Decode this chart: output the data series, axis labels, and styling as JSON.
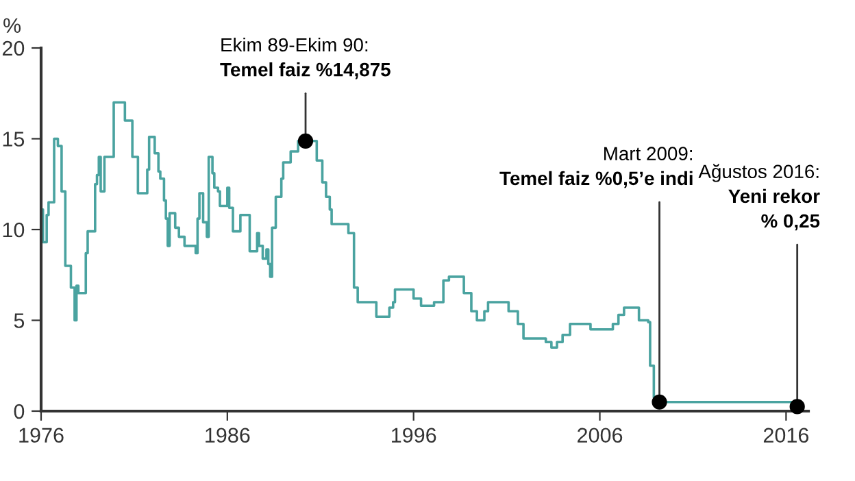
{
  "chart_data": {
    "type": "step",
    "ylabel": "%",
    "xlim": [
      1976,
      2017.2
    ],
    "xticks": [
      1976,
      1986,
      1996,
      2006,
      2016
    ],
    "ylim": [
      0,
      20
    ],
    "yticks": [
      0,
      5,
      10,
      15,
      20
    ],
    "grid": false,
    "series": [
      {
        "color": "#4aa3a0",
        "x": [
          1976.0,
          1976.1,
          1976.2,
          1976.3,
          1976.4,
          1976.6,
          1976.7,
          1976.9,
          1977.1,
          1977.3,
          1977.5,
          1977.6,
          1977.8,
          1977.9,
          1978.0,
          1978.2,
          1978.4,
          1978.5,
          1978.8,
          1978.9,
          1979.0,
          1979.1,
          1979.2,
          1979.4,
          1979.8,
          1979.9,
          1980.4,
          1980.5,
          1980.8,
          1980.9,
          1981.1,
          1981.2,
          1981.6,
          1981.7,
          1981.8,
          1982.1,
          1982.3,
          1982.4,
          1982.6,
          1982.7,
          1982.8,
          1982.9,
          1983.1,
          1983.2,
          1983.4,
          1983.6,
          1983.7,
          1984.2,
          1984.3,
          1984.4,
          1984.5,
          1984.7,
          1984.8,
          1984.9,
          1985.0,
          1985.2,
          1985.3,
          1985.5,
          1985.6,
          1985.9,
          1986.0,
          1986.1,
          1986.3,
          1986.6,
          1986.7,
          1987.1,
          1987.2,
          1987.5,
          1987.6,
          1987.7,
          1987.9,
          1988.1,
          1988.2,
          1988.3,
          1988.4,
          1988.6,
          1988.8,
          1988.9,
          1989.0,
          1989.4,
          1989.8,
          1990.6,
          1990.8,
          1991.1,
          1991.3,
          1991.5,
          1991.6,
          1992.2,
          1992.5,
          1992.8,
          1993.0,
          1993.7,
          1994.0,
          1994.5,
          1994.7,
          1994.9,
          1995.0,
          1995.8,
          1996.0,
          1996.4,
          1996.7,
          1997.1,
          1997.4,
          1997.6,
          1997.9,
          1998.4,
          1998.7,
          1999.1,
          1999.4,
          1999.8,
          2000.0,
          2000.9,
          2001.1,
          2001.6,
          2001.9,
          2002.8,
          2003.1,
          2003.4,
          2003.7,
          2004.0,
          2004.4,
          2005.4,
          2005.5,
          2006.5,
          2006.7,
          2007.0,
          2007.3,
          2007.7,
          2008.1,
          2008.6,
          2008.7,
          2008.9,
          2009.2,
          2016.4,
          2016.6
        ],
        "values": [
          11.1,
          9.3,
          9.3,
          10.8,
          11.5,
          11.5,
          15.0,
          14.6,
          12.1,
          8.0,
          8.0,
          6.8,
          5.0,
          6.9,
          6.5,
          6.5,
          8.7,
          9.9,
          9.9,
          12.5,
          13.0,
          14.0,
          12.1,
          14.0,
          14.0,
          17.0,
          17.0,
          16.0,
          16.0,
          14.0,
          14.0,
          12.0,
          12.0,
          13.3,
          15.1,
          14.2,
          13.2,
          12.8,
          11.6,
          10.6,
          9.1,
          10.9,
          10.9,
          10.1,
          9.6,
          9.6,
          9.1,
          9.1,
          8.7,
          10.6,
          12.0,
          10.4,
          10.4,
          9.6,
          14.0,
          13.1,
          12.3,
          12.1,
          11.3,
          11.3,
          12.3,
          11.2,
          9.9,
          9.9,
          10.8,
          10.8,
          8.8,
          8.8,
          9.8,
          9.1,
          8.4,
          8.9,
          8.1,
          7.4,
          10.1,
          11.8,
          11.8,
          12.8,
          13.7,
          14.3,
          14.875,
          14.875,
          13.8,
          12.6,
          11.8,
          11.1,
          10.3,
          10.3,
          9.8,
          6.8,
          6.0,
          6.0,
          5.2,
          5.2,
          5.7,
          6.0,
          6.7,
          6.7,
          6.2,
          5.8,
          5.8,
          6.0,
          6.0,
          7.2,
          7.4,
          7.4,
          6.5,
          5.5,
          5.0,
          5.5,
          6.0,
          6.0,
          5.5,
          4.8,
          4.0,
          4.0,
          3.8,
          3.5,
          3.8,
          4.2,
          4.8,
          4.8,
          4.5,
          4.5,
          4.8,
          5.3,
          5.7,
          5.7,
          5.0,
          4.9,
          2.5,
          0.75,
          0.5,
          0.5,
          0.25
        ]
      }
    ],
    "annotations": [
      {
        "text": "Ekim 89-Ekim 90:\nTemel faiz %14,875",
        "x": 1990.2,
        "y": 14.875
      },
      {
        "text": "Mart 2009:\nTemel faiz %0,5’e indi",
        "x": 2009.2,
        "y": 0.5
      },
      {
        "text": "Ağustos 2016:\nYeni rekor\n% 0,25",
        "x": 2016.6,
        "y": 0.25
      }
    ]
  }
}
